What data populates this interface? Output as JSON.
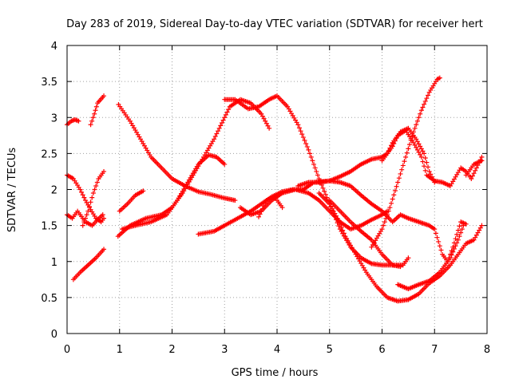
{
  "chart_data": {
    "type": "scatter",
    "title": "Day 283 of 2019, Sidereal Day-to-day VTEC variation (SDTVAR) for receiver hert",
    "xlabel": "GPS time / hours",
    "ylabel": "SDTVAR / TECUs",
    "xlim": [
      0,
      8
    ],
    "ylim": [
      0,
      4
    ],
    "xticks": [
      "0",
      "1",
      "2",
      "3",
      "4",
      "5",
      "6",
      "7",
      "8"
    ],
    "yticks": [
      "0",
      "0.5",
      "1",
      "1.5",
      "2",
      "2.5",
      "3",
      "3.5",
      "4"
    ],
    "grid": true,
    "marker": "+",
    "color": "#ff0000",
    "series": [
      {
        "name": "s1",
        "points": [
          [
            0.0,
            2.9
          ],
          [
            0.08,
            2.95
          ],
          [
            0.15,
            2.97
          ],
          [
            0.22,
            2.95
          ]
        ]
      },
      {
        "name": "s2",
        "points": [
          [
            0.45,
            2.9
          ],
          [
            0.52,
            3.05
          ],
          [
            0.58,
            3.2
          ],
          [
            0.7,
            3.3
          ]
        ]
      },
      {
        "name": "s3",
        "points": [
          [
            0.0,
            1.65
          ],
          [
            0.1,
            1.6
          ],
          [
            0.2,
            1.7
          ],
          [
            0.35,
            1.55
          ],
          [
            0.48,
            1.5
          ],
          [
            0.58,
            1.58
          ],
          [
            0.68,
            1.65
          ]
        ]
      },
      {
        "name": "s4",
        "points": [
          [
            0.0,
            2.2
          ],
          [
            0.12,
            2.15
          ],
          [
            0.25,
            2.0
          ],
          [
            0.35,
            1.85
          ],
          [
            0.45,
            1.72
          ],
          [
            0.55,
            1.6
          ],
          [
            0.65,
            1.55
          ],
          [
            0.7,
            1.6
          ]
        ]
      },
      {
        "name": "s5",
        "points": [
          [
            0.12,
            0.75
          ],
          [
            0.25,
            0.85
          ],
          [
            0.4,
            0.95
          ],
          [
            0.55,
            1.05
          ],
          [
            0.7,
            1.17
          ]
        ]
      },
      {
        "name": "s6",
        "points": [
          [
            0.3,
            1.5
          ],
          [
            0.4,
            1.7
          ],
          [
            0.5,
            1.95
          ],
          [
            0.6,
            2.15
          ],
          [
            0.7,
            2.25
          ]
        ]
      },
      {
        "name": "s7",
        "points": [
          [
            0.98,
            3.18
          ],
          [
            1.2,
            2.95
          ],
          [
            1.4,
            2.7
          ],
          [
            1.6,
            2.45
          ],
          [
            1.8,
            2.3
          ],
          [
            2.0,
            2.15
          ],
          [
            2.25,
            2.05
          ],
          [
            2.5,
            1.97
          ],
          [
            2.75,
            1.93
          ],
          [
            3.0,
            1.88
          ],
          [
            3.2,
            1.85
          ]
        ]
      },
      {
        "name": "s8",
        "points": [
          [
            1.0,
            1.7
          ],
          [
            1.15,
            1.8
          ],
          [
            1.3,
            1.92
          ],
          [
            1.45,
            1.98
          ]
        ]
      },
      {
        "name": "s9",
        "points": [
          [
            0.97,
            1.35
          ],
          [
            1.2,
            1.5
          ],
          [
            1.5,
            1.6
          ],
          [
            1.8,
            1.65
          ],
          [
            2.0,
            1.75
          ],
          [
            2.2,
            1.95
          ],
          [
            2.4,
            2.2
          ],
          [
            2.6,
            2.45
          ],
          [
            2.8,
            2.7
          ],
          [
            3.0,
            3.0
          ],
          [
            3.1,
            3.15
          ],
          [
            3.3,
            3.25
          ],
          [
            3.5,
            3.2
          ],
          [
            3.7,
            3.05
          ],
          [
            3.85,
            2.85
          ]
        ]
      },
      {
        "name": "s10",
        "points": [
          [
            1.05,
            1.45
          ],
          [
            1.3,
            1.5
          ],
          [
            1.6,
            1.55
          ],
          [
            1.9,
            1.65
          ],
          [
            2.1,
            1.85
          ],
          [
            2.3,
            2.1
          ],
          [
            2.5,
            2.35
          ],
          [
            2.7,
            2.48
          ],
          [
            2.85,
            2.45
          ],
          [
            3.0,
            2.35
          ]
        ]
      },
      {
        "name": "s11",
        "points": [
          [
            2.5,
            1.38
          ],
          [
            2.8,
            1.42
          ],
          [
            3.0,
            1.5
          ],
          [
            3.3,
            1.62
          ],
          [
            3.5,
            1.7
          ],
          [
            3.7,
            1.8
          ],
          [
            3.9,
            1.9
          ],
          [
            4.1,
            1.97
          ],
          [
            4.3,
            2.0
          ],
          [
            4.5,
            2.0
          ],
          [
            4.7,
            2.1
          ],
          [
            5.0,
            2.12
          ]
        ]
      },
      {
        "name": "s12",
        "points": [
          [
            3.0,
            3.25
          ],
          [
            3.2,
            3.25
          ],
          [
            3.45,
            3.12
          ],
          [
            3.65,
            3.15
          ],
          [
            3.85,
            3.25
          ],
          [
            4.0,
            3.3
          ],
          [
            4.2,
            3.15
          ],
          [
            4.4,
            2.9
          ],
          [
            4.6,
            2.55
          ],
          [
            4.8,
            2.15
          ],
          [
            5.0,
            1.8
          ],
          [
            5.2,
            1.45
          ],
          [
            5.4,
            1.2
          ],
          [
            5.6,
            1.05
          ],
          [
            5.8,
            0.97
          ],
          [
            6.0,
            0.95
          ],
          [
            6.2,
            0.95
          ],
          [
            6.4,
            0.95
          ],
          [
            6.5,
            1.05
          ]
        ]
      },
      {
        "name": "s13",
        "points": [
          [
            3.3,
            1.75
          ],
          [
            3.5,
            1.65
          ],
          [
            3.7,
            1.7
          ],
          [
            3.9,
            1.85
          ],
          [
            4.1,
            1.95
          ],
          [
            4.35,
            2.0
          ],
          [
            4.6,
            1.95
          ],
          [
            4.8,
            1.85
          ],
          [
            5.0,
            1.7
          ],
          [
            5.2,
            1.55
          ],
          [
            5.4,
            1.45
          ],
          [
            5.6,
            1.5
          ],
          [
            5.8,
            1.58
          ],
          [
            6.0,
            1.65
          ],
          [
            6.1,
            1.7
          ]
        ]
      },
      {
        "name": "s14",
        "points": [
          [
            3.65,
            1.62
          ],
          [
            3.8,
            1.85
          ],
          [
            3.95,
            1.9
          ],
          [
            4.1,
            1.75
          ]
        ]
      },
      {
        "name": "s15",
        "points": [
          [
            4.4,
            2.05
          ],
          [
            4.6,
            2.1
          ],
          [
            4.8,
            2.1
          ],
          [
            5.0,
            2.12
          ],
          [
            5.2,
            2.1
          ],
          [
            5.4,
            2.05
          ],
          [
            5.6,
            1.92
          ],
          [
            5.8,
            1.8
          ],
          [
            6.0,
            1.7
          ],
          [
            6.2,
            1.55
          ],
          [
            6.35,
            1.65
          ],
          [
            6.5,
            1.6
          ],
          [
            6.7,
            1.55
          ],
          [
            6.9,
            1.5
          ],
          [
            7.0,
            1.45
          ],
          [
            7.15,
            1.1
          ],
          [
            7.25,
            1.0
          ],
          [
            7.35,
            1.2
          ],
          [
            7.5,
            1.55
          ],
          [
            7.6,
            1.52
          ]
        ]
      },
      {
        "name": "s16",
        "points": [
          [
            5.0,
            2.12
          ],
          [
            5.2,
            2.18
          ],
          [
            5.4,
            2.25
          ],
          [
            5.6,
            2.35
          ],
          [
            5.8,
            2.42
          ],
          [
            6.0,
            2.45
          ],
          [
            6.1,
            2.5
          ],
          [
            6.2,
            2.6
          ],
          [
            6.3,
            2.75
          ],
          [
            6.45,
            2.82
          ],
          [
            6.6,
            2.65
          ],
          [
            6.75,
            2.45
          ],
          [
            6.85,
            2.2
          ],
          [
            7.0,
            2.12
          ],
          [
            7.15,
            2.1
          ],
          [
            7.3,
            2.05
          ],
          [
            7.5,
            2.3
          ],
          [
            7.6,
            2.25
          ],
          [
            7.7,
            2.15
          ],
          [
            7.8,
            2.3
          ],
          [
            7.9,
            2.45
          ]
        ]
      },
      {
        "name": "s17",
        "points": [
          [
            4.8,
            1.95
          ],
          [
            5.0,
            1.8
          ],
          [
            5.15,
            1.6
          ],
          [
            5.3,
            1.35
          ],
          [
            5.5,
            1.1
          ],
          [
            5.7,
            0.85
          ],
          [
            5.9,
            0.65
          ],
          [
            6.1,
            0.5
          ],
          [
            6.3,
            0.45
          ],
          [
            6.5,
            0.47
          ],
          [
            6.7,
            0.55
          ],
          [
            6.9,
            0.7
          ],
          [
            7.1,
            0.8
          ],
          [
            7.3,
            0.95
          ],
          [
            7.45,
            1.1
          ],
          [
            7.6,
            1.25
          ],
          [
            7.75,
            1.3
          ],
          [
            7.9,
            1.5
          ]
        ]
      },
      {
        "name": "s18",
        "points": [
          [
            6.0,
            2.4
          ],
          [
            6.1,
            2.5
          ],
          [
            6.2,
            2.65
          ],
          [
            6.35,
            2.8
          ],
          [
            6.5,
            2.85
          ],
          [
            6.65,
            2.7
          ],
          [
            6.8,
            2.5
          ],
          [
            6.9,
            2.25
          ],
          [
            7.0,
            2.1
          ]
        ]
      },
      {
        "name": "s19",
        "points": [
          [
            5.8,
            1.2
          ],
          [
            6.0,
            1.45
          ],
          [
            6.15,
            1.75
          ],
          [
            6.3,
            2.1
          ],
          [
            6.45,
            2.45
          ],
          [
            6.6,
            2.8
          ],
          [
            6.75,
            3.1
          ],
          [
            6.9,
            3.35
          ],
          [
            7.05,
            3.53
          ],
          [
            7.1,
            3.55
          ]
        ]
      },
      {
        "name": "s20",
        "points": [
          [
            6.3,
            0.68
          ],
          [
            6.5,
            0.62
          ],
          [
            6.7,
            0.68
          ],
          [
            6.9,
            0.73
          ],
          [
            7.1,
            0.85
          ],
          [
            7.3,
            1.05
          ],
          [
            7.45,
            1.3
          ],
          [
            7.55,
            1.5
          ]
        ]
      },
      {
        "name": "s21",
        "points": [
          [
            7.6,
            2.2
          ],
          [
            7.75,
            2.35
          ],
          [
            7.9,
            2.4
          ]
        ]
      },
      {
        "name": "s22",
        "points": [
          [
            5.0,
            1.85
          ],
          [
            5.2,
            1.7
          ],
          [
            5.4,
            1.55
          ],
          [
            5.6,
            1.42
          ],
          [
            5.8,
            1.3
          ],
          [
            6.0,
            1.1
          ],
          [
            6.2,
            0.95
          ],
          [
            6.35,
            0.93
          ]
        ]
      }
    ]
  }
}
